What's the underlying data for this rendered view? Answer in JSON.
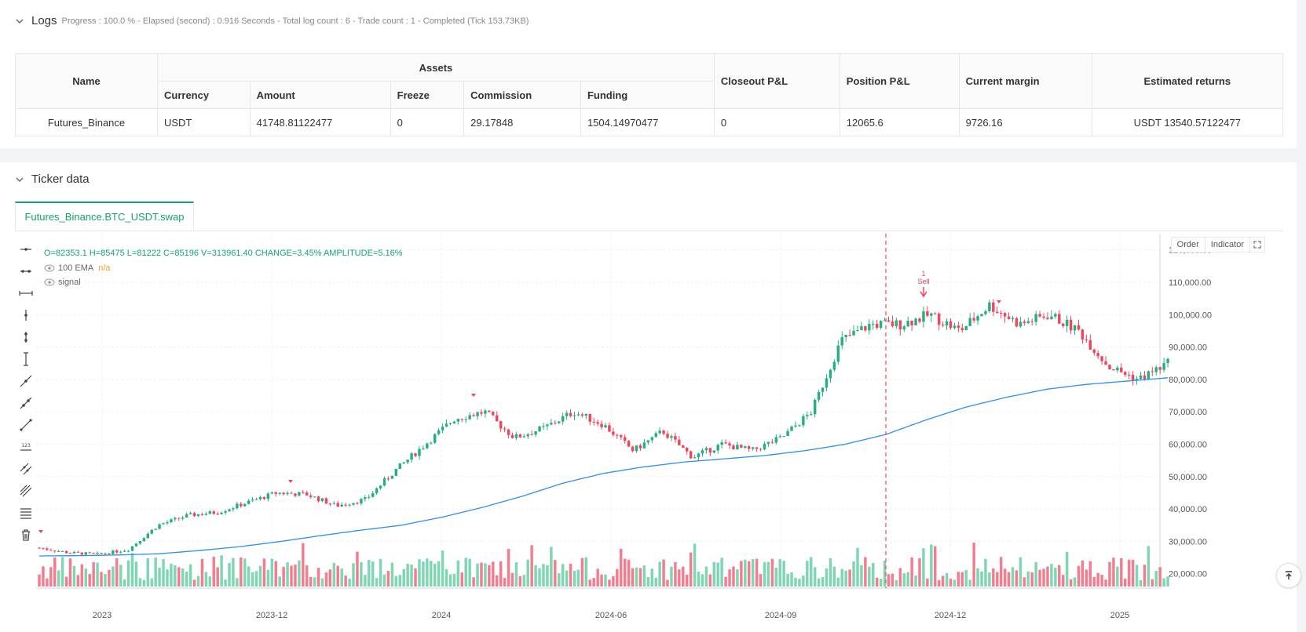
{
  "logs": {
    "title": "Logs",
    "status": "Progress : 100.0 % - Elapsed (second) : 0.916  Seconds - Total log count : 6 - Trade count : 1 - Completed (Tick 153.73KB)"
  },
  "assets_table": {
    "group_header": "Assets",
    "headers": {
      "name": "Name",
      "currency": "Currency",
      "amount": "Amount",
      "freeze": "Freeze",
      "commission": "Commission",
      "funding": "Funding",
      "closeout": "Closeout P&L",
      "position": "Position P&L",
      "margin": "Current margin",
      "returns": "Estimated returns"
    },
    "row": {
      "name": "Futures_Binance",
      "currency": "USDT",
      "amount": "41748.81122477",
      "freeze": "0",
      "commission": "29.17848",
      "funding": "1504.14970477",
      "closeout": "0",
      "position": "12065.6",
      "margin": "9726.16",
      "returns": "USDT 13540.57122477"
    }
  },
  "ticker": {
    "title": "Ticker data",
    "tab_label": "Futures_Binance.BTC_USDT.swap",
    "ohlc_line": "O=82353.1 H=85475 L=81222 C=85196 V=313961.40 CHANGE=3.45% AMPLITUDE=5.16%",
    "ema_label": "100 EMA",
    "ema_value": "n/a",
    "signal_label": "signal",
    "order_button": "Order",
    "indicator_button": "Indicator",
    "tools": [
      "horizontal-ray-icon",
      "horizontal-segment-icon",
      "horizontal-line-icon",
      "vertical-ray-icon",
      "vertical-segment-icon",
      "vertical-line-icon",
      "trend-ray-icon",
      "trend-segment-icon",
      "trend-line-icon",
      "price-label-icon",
      "parallel-channel-icon",
      "pitchfork-icon",
      "fibonacci-icon",
      "delete-icon"
    ]
  },
  "colors": {
    "up": "#26b07e",
    "down": "#f0455c",
    "ema": "#2b8ef0",
    "accent": "#13a36b",
    "volume_up": "#7fd6b3",
    "volume_down": "#f37d8f"
  },
  "chart_data": {
    "type": "candlestick",
    "y_ticks": [
      "120,000.00",
      "110,000.00",
      "100,000.00",
      "90,000.00",
      "80,000.00",
      "70,000.00",
      "60,000.00",
      "50,000.00",
      "40,000.00",
      "30,000.00",
      "20,000.00"
    ],
    "ylim": [
      18000,
      125000
    ],
    "x_ticks": [
      "2023",
      "2023-12",
      "2024",
      "2024-06",
      "2024-09",
      "2024-12",
      "2025"
    ],
    "annotations": [
      {
        "label": "1",
        "text": "Sell"
      }
    ],
    "series": [
      {
        "name": "100 EMA",
        "type": "line",
        "values": [
          25500,
          25600,
          25800,
          26200,
          27200,
          28400,
          30000,
          31800,
          33500,
          35000,
          37500,
          40500,
          44000,
          48000,
          51000,
          53000,
          54500,
          55500,
          56500,
          58000,
          60000,
          63000,
          67500,
          71500,
          74500,
          77000,
          78500,
          79500,
          80500
        ]
      },
      {
        "name": "price",
        "type": "candlestick",
        "values": [
          28000,
          26500,
          26000,
          27500,
          35000,
          38000,
          39000,
          42000,
          45000,
          44500,
          41000,
          43000,
          52000,
          60000,
          68000,
          70000,
          62000,
          65000,
          70000,
          66000,
          58000,
          64000,
          56000,
          60000,
          58000,
          62000,
          70000,
          92000,
          97000,
          97000,
          100000,
          95000,
          103000,
          97000,
          100000,
          95000,
          84000,
          80000,
          85000
        ]
      }
    ]
  }
}
